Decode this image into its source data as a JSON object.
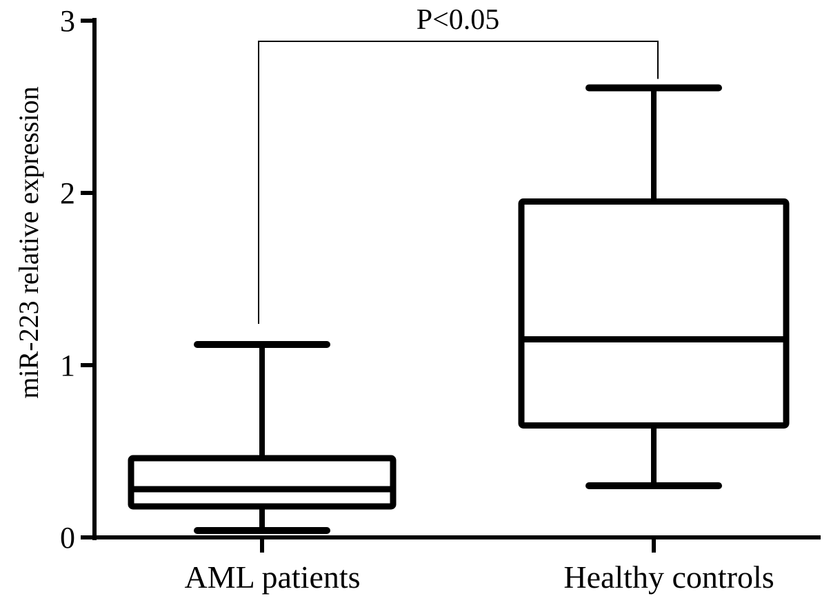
{
  "chart_data": {
    "type": "box",
    "title": "",
    "xlabel": "",
    "ylabel": "miR-223 relative expression",
    "ylim": [
      0,
      3
    ],
    "yticks": [
      "0",
      "1",
      "2",
      "3"
    ],
    "grid": false,
    "categories": [
      "AML patients",
      "Healthy controls"
    ],
    "boxes": [
      {
        "category": "AML patients",
        "whisker_low": 0.04,
        "q1": 0.18,
        "median": 0.28,
        "q3": 0.46,
        "whisker_high": 1.12
      },
      {
        "category": "Healthy controls",
        "whisker_low": 0.3,
        "q1": 0.65,
        "median": 1.15,
        "q3": 1.95,
        "whisker_high": 2.61
      }
    ],
    "annotation": {
      "text": "P<0.05",
      "between": [
        "AML patients",
        "Healthy controls"
      ]
    },
    "colors": {
      "stroke": "#000000",
      "background": "#ffffff"
    }
  }
}
